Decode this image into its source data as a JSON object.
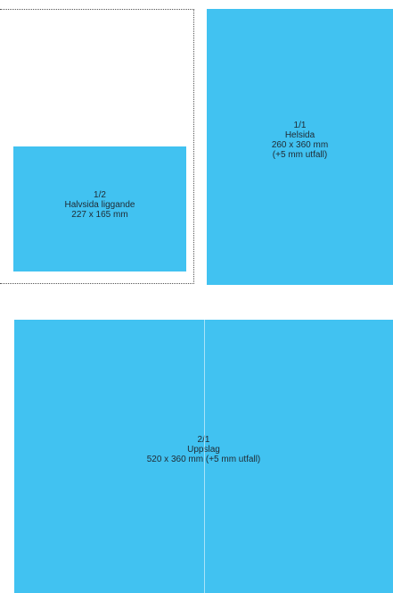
{
  "half_page": {
    "fraction": "1/2",
    "name": "Halvsida liggande",
    "size": "227 x 165 mm"
  },
  "full_page": {
    "fraction": "1/1",
    "name": "Helsida",
    "size": "260 x 360 mm",
    "bleed": "(+5 mm utfall)"
  },
  "spread": {
    "fraction": "2/1",
    "name": "Uppslag",
    "size": "520 x 360 mm (+5 mm utfall)"
  },
  "colors": {
    "ad_fill": "#41c2f1",
    "text": "#1f2a33",
    "outline": "#555555"
  }
}
